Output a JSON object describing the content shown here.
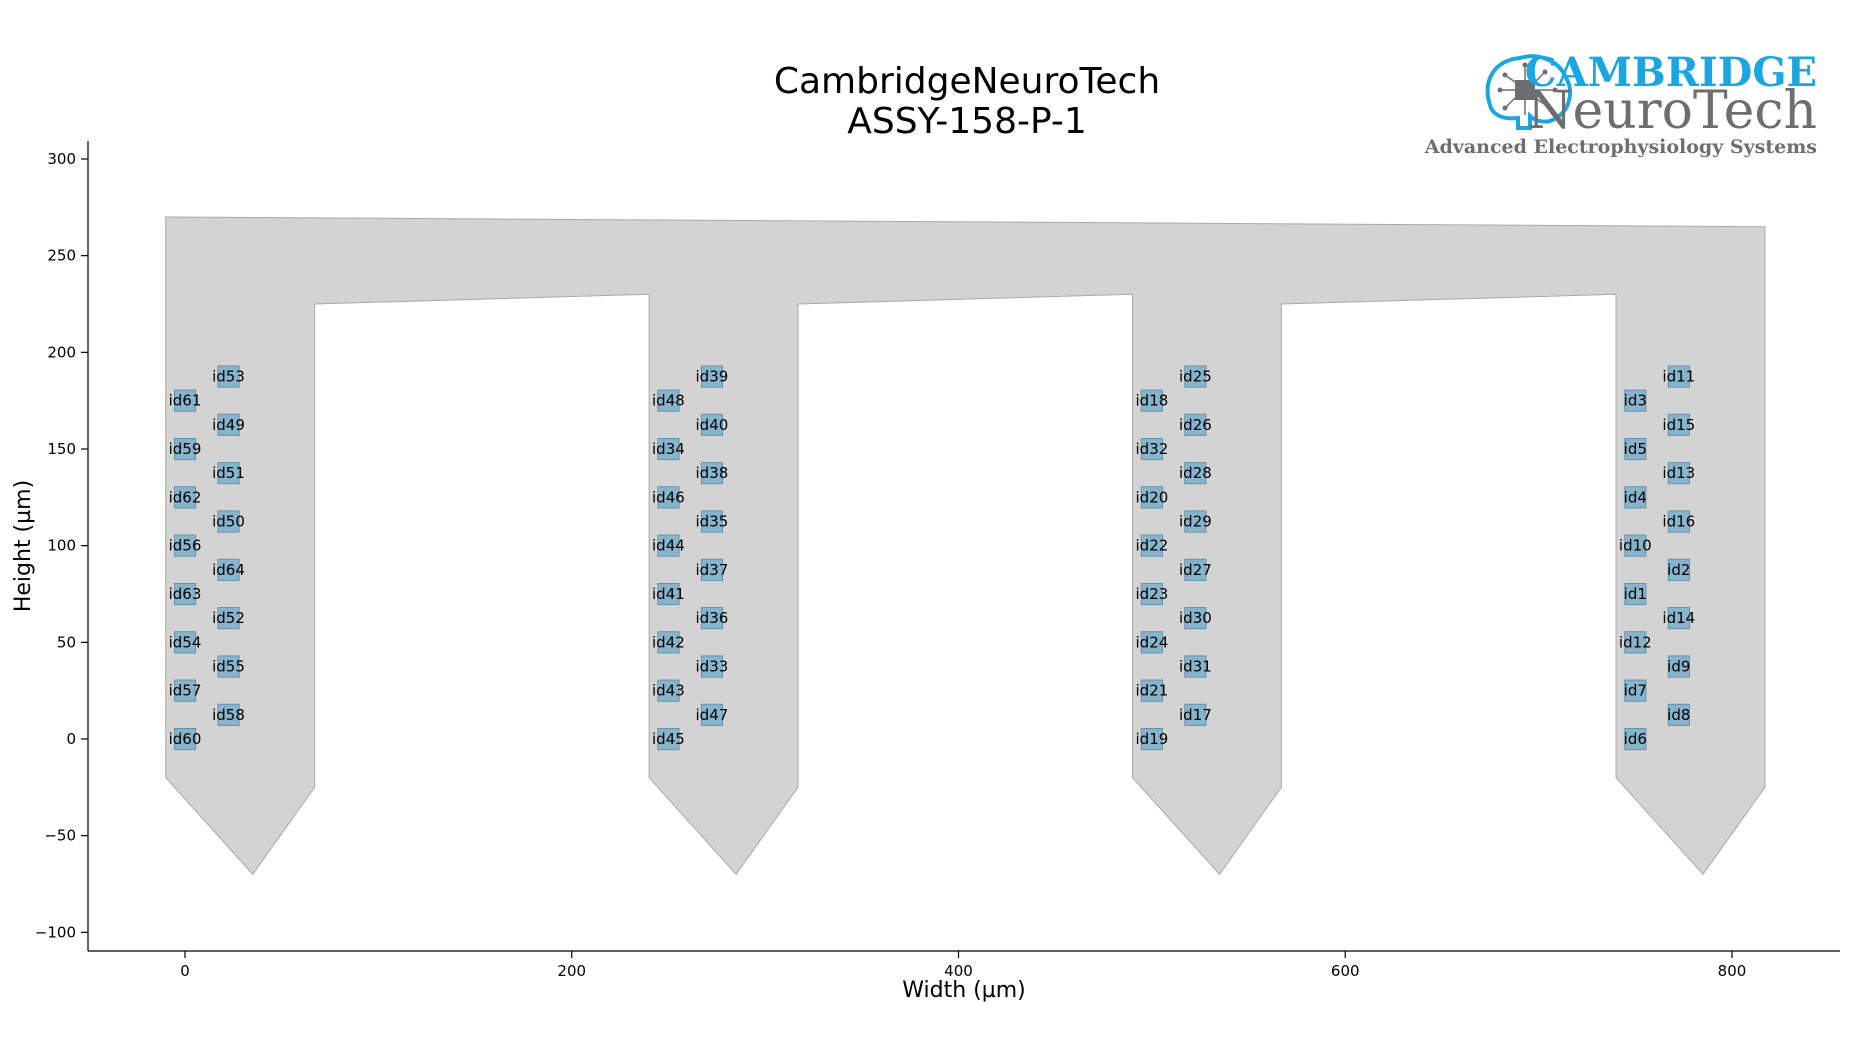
{
  "title": {
    "line1": "CambridgeNeuroTech",
    "line2": "ASSY-158-P-1"
  },
  "logo": {
    "brand_line1": "CAMBRIDGE",
    "brand_line2": "NeuroTech",
    "tagline": "Advanced Electrophysiology Systems",
    "colors": {
      "primary": "#1aa6e0",
      "secondary": "#6d6e71"
    },
    "icon": "brain-circuit-icon"
  },
  "axes": {
    "xlabel": "Width (µm)",
    "ylabel": "Height (µm)",
    "xlim": [
      -50,
      860
    ],
    "ylim": [
      -110,
      310
    ],
    "xticks": [
      0,
      200,
      400,
      600,
      800
    ],
    "yticks": [
      -100,
      -50,
      0,
      50,
      100,
      150,
      200,
      250,
      300
    ],
    "xtick_labels": [
      "0",
      "200",
      "400",
      "600",
      "800"
    ],
    "ytick_labels": [
      "−100",
      "−50",
      "0",
      "50",
      "100",
      "150",
      "200",
      "250",
      "300"
    ]
  },
  "colors": {
    "probe_fill": "#d3d3d3",
    "probe_edge": "#a9a9a9",
    "contact_fill": "#87b3cb",
    "contact_edge": "#5d8aa3"
  },
  "probe_outline": [
    [
      -10,
      -20
    ],
    [
      35,
      -70
    ],
    [
      67,
      -25
    ],
    [
      67,
      225
    ],
    [
      240,
      230
    ],
    [
      240,
      -20
    ],
    [
      285,
      -70
    ],
    [
      317,
      -25
    ],
    [
      317,
      225
    ],
    [
      490,
      230
    ],
    [
      490,
      -20
    ],
    [
      535,
      -70
    ],
    [
      567,
      -25
    ],
    [
      567,
      225
    ],
    [
      740,
      230
    ],
    [
      740,
      -20
    ],
    [
      785,
      -70
    ],
    [
      817,
      -25
    ],
    [
      817,
      265
    ],
    [
      -10,
      270
    ]
  ],
  "contact_size": 11,
  "contacts": [
    {
      "id": "id60",
      "x": 0,
      "y": 0
    },
    {
      "id": "id57",
      "x": 0,
      "y": 25
    },
    {
      "id": "id54",
      "x": 0,
      "y": 50
    },
    {
      "id": "id63",
      "x": 0,
      "y": 75
    },
    {
      "id": "id56",
      "x": 0,
      "y": 100
    },
    {
      "id": "id62",
      "x": 0,
      "y": 125
    },
    {
      "id": "id59",
      "x": 0,
      "y": 150
    },
    {
      "id": "id61",
      "x": 0,
      "y": 175
    },
    {
      "id": "id58",
      "x": 22.5,
      "y": 12.5
    },
    {
      "id": "id55",
      "x": 22.5,
      "y": 37.5
    },
    {
      "id": "id52",
      "x": 22.5,
      "y": 62.5
    },
    {
      "id": "id64",
      "x": 22.5,
      "y": 87.5
    },
    {
      "id": "id50",
      "x": 22.5,
      "y": 112.5
    },
    {
      "id": "id51",
      "x": 22.5,
      "y": 137.5
    },
    {
      "id": "id49",
      "x": 22.5,
      "y": 162.5
    },
    {
      "id": "id53",
      "x": 22.5,
      "y": 187.5
    },
    {
      "id": "id45",
      "x": 250,
      "y": 0
    },
    {
      "id": "id43",
      "x": 250,
      "y": 25
    },
    {
      "id": "id42",
      "x": 250,
      "y": 50
    },
    {
      "id": "id41",
      "x": 250,
      "y": 75
    },
    {
      "id": "id44",
      "x": 250,
      "y": 100
    },
    {
      "id": "id46",
      "x": 250,
      "y": 125
    },
    {
      "id": "id34",
      "x": 250,
      "y": 150
    },
    {
      "id": "id48",
      "x": 250,
      "y": 175
    },
    {
      "id": "id47",
      "x": 272.5,
      "y": 12.5
    },
    {
      "id": "id33",
      "x": 272.5,
      "y": 37.5
    },
    {
      "id": "id36",
      "x": 272.5,
      "y": 62.5
    },
    {
      "id": "id37",
      "x": 272.5,
      "y": 87.5
    },
    {
      "id": "id35",
      "x": 272.5,
      "y": 112.5
    },
    {
      "id": "id38",
      "x": 272.5,
      "y": 137.5
    },
    {
      "id": "id40",
      "x": 272.5,
      "y": 162.5
    },
    {
      "id": "id39",
      "x": 272.5,
      "y": 187.5
    },
    {
      "id": "id19",
      "x": 500,
      "y": 0
    },
    {
      "id": "id21",
      "x": 500,
      "y": 25
    },
    {
      "id": "id24",
      "x": 500,
      "y": 50
    },
    {
      "id": "id23",
      "x": 500,
      "y": 75
    },
    {
      "id": "id22",
      "x": 500,
      "y": 100
    },
    {
      "id": "id20",
      "x": 500,
      "y": 125
    },
    {
      "id": "id32",
      "x": 500,
      "y": 150
    },
    {
      "id": "id18",
      "x": 500,
      "y": 175
    },
    {
      "id": "id17",
      "x": 522.5,
      "y": 12.5
    },
    {
      "id": "id31",
      "x": 522.5,
      "y": 37.5
    },
    {
      "id": "id30",
      "x": 522.5,
      "y": 62.5
    },
    {
      "id": "id27",
      "x": 522.5,
      "y": 87.5
    },
    {
      "id": "id29",
      "x": 522.5,
      "y": 112.5
    },
    {
      "id": "id28",
      "x": 522.5,
      "y": 137.5
    },
    {
      "id": "id26",
      "x": 522.5,
      "y": 162.5
    },
    {
      "id": "id25",
      "x": 522.5,
      "y": 187.5
    },
    {
      "id": "id6",
      "x": 750,
      "y": 0
    },
    {
      "id": "id7",
      "x": 750,
      "y": 25
    },
    {
      "id": "id12",
      "x": 750,
      "y": 50
    },
    {
      "id": "id1",
      "x": 750,
      "y": 75
    },
    {
      "id": "id10",
      "x": 750,
      "y": 100
    },
    {
      "id": "id4",
      "x": 750,
      "y": 125
    },
    {
      "id": "id5",
      "x": 750,
      "y": 150
    },
    {
      "id": "id3",
      "x": 750,
      "y": 175
    },
    {
      "id": "id8",
      "x": 772.5,
      "y": 12.5
    },
    {
      "id": "id9",
      "x": 772.5,
      "y": 37.5
    },
    {
      "id": "id14",
      "x": 772.5,
      "y": 62.5
    },
    {
      "id": "id2",
      "x": 772.5,
      "y": 87.5
    },
    {
      "id": "id16",
      "x": 772.5,
      "y": 112.5
    },
    {
      "id": "id13",
      "x": 772.5,
      "y": 137.5
    },
    {
      "id": "id15",
      "x": 772.5,
      "y": 162.5
    },
    {
      "id": "id11",
      "x": 772.5,
      "y": 187.5
    }
  ]
}
